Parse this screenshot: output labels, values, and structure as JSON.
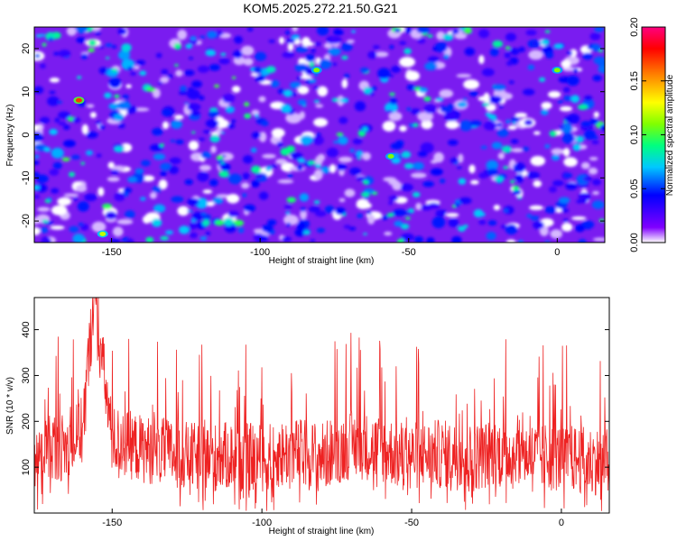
{
  "title": "KOM5.2025.272.21.50.G21",
  "chart_data": [
    {
      "type": "heatmap",
      "xlabel": "Height of straight line (km)",
      "ylabel": "Frequency (Hz)",
      "xlim": [
        -176,
        16
      ],
      "ylim": [
        -25,
        25
      ],
      "xticks": [
        -150,
        -100,
        -50,
        0
      ],
      "yticks": [
        -20,
        -10,
        0,
        10,
        20
      ],
      "xtick_labels": [
        "-150",
        "-100",
        "-50",
        "0"
      ],
      "ytick_labels": [
        "-20",
        "-10",
        "0",
        "10",
        "20"
      ],
      "colorbar": {
        "label": "Normalized spectral amplitude",
        "range": [
          0.0,
          0.2
        ],
        "ticks": [
          0.0,
          0.05,
          0.1,
          0.15,
          0.2
        ],
        "tick_labels": [
          "0.00",
          "0.05",
          "0.10",
          "0.15",
          "0.20"
        ],
        "colors": [
          "#ffffff",
          "#8000ff",
          "#0000ff",
          "#00c8ff",
          "#00ff80",
          "#80ff00",
          "#ffff00",
          "#ff8000",
          "#ff0000",
          "#ff0080"
        ]
      },
      "hotspots": [
        {
          "x": -161,
          "y": 8,
          "value": 0.17
        },
        {
          "x": -153,
          "y": -23,
          "value": 0.12
        },
        {
          "x": -81,
          "y": 15,
          "value": 0.11
        },
        {
          "x": -56,
          "y": -5,
          "value": 0.11
        },
        {
          "x": 0,
          "y": 15,
          "value": 0.11
        }
      ],
      "grid": false
    },
    {
      "type": "line",
      "xlabel": "Height of straight line (km)",
      "ylabel": "SNR (10 * v/v)",
      "xlim": [
        -176,
        16
      ],
      "ylim": [
        0,
        470
      ],
      "xticks": [
        -150,
        -100,
        -50,
        0
      ],
      "yticks": [
        100,
        200,
        300,
        400
      ],
      "xtick_labels": [
        "-150",
        "-100",
        "-50",
        "0"
      ],
      "ytick_labels": [
        "100",
        "200",
        "300",
        "400"
      ],
      "color": "#ee2222",
      "series": [
        {
          "x": [
            -176,
            -170,
            -165,
            -160,
            -156,
            -150,
            -140,
            -130,
            -120,
            -110,
            -100,
            -90,
            -80,
            -70,
            -60,
            -55,
            -50,
            -40,
            -30,
            -20,
            -10,
            0,
            10,
            16
          ],
          "y": [
            120,
            150,
            140,
            180,
            470,
            160,
            140,
            130,
            120,
            125,
            120,
            135,
            125,
            150,
            140,
            130,
            125,
            130,
            120,
            135,
            125,
            120,
            115,
            110
          ]
        }
      ],
      "grid": false
    }
  ]
}
